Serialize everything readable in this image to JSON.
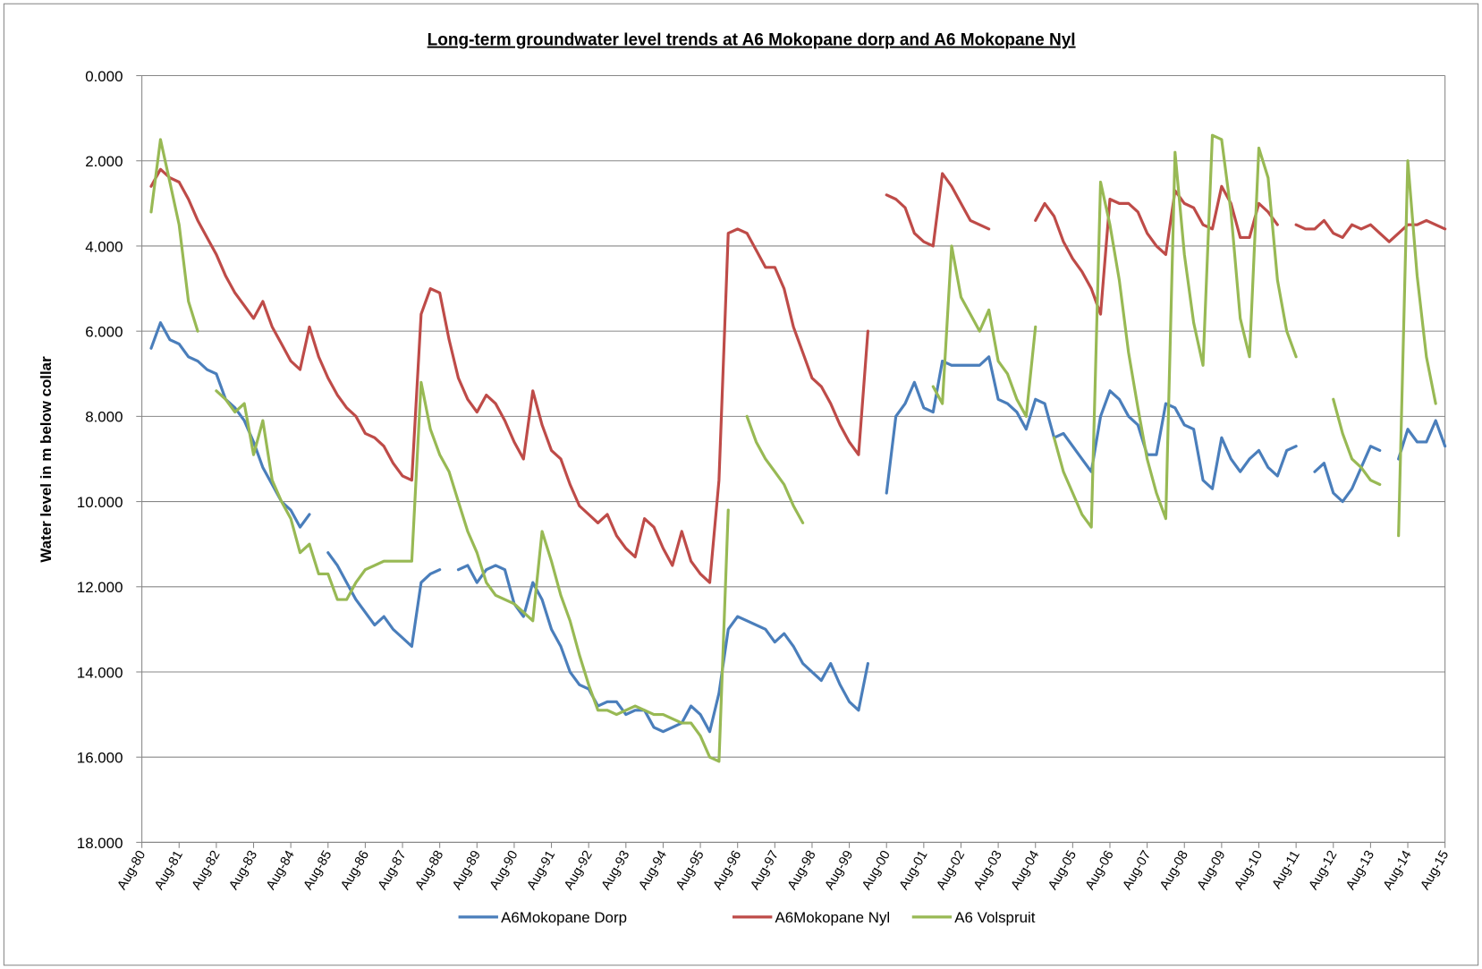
{
  "chart_data": {
    "type": "line",
    "title": "Long-term groundwater level trends at A6 Mokopane dorp and A6 Mokopane Nyl",
    "y_label": "Water level in m below collar",
    "y_reversed": true,
    "grid": true,
    "legend": "bottom",
    "ylim": [
      0,
      18
    ],
    "yticks": [
      {
        "value": 0,
        "label": "0.000"
      },
      {
        "value": 2,
        "label": "2.000"
      },
      {
        "value": 4,
        "label": "4.000"
      },
      {
        "value": 6,
        "label": "6.000"
      },
      {
        "value": 8,
        "label": "8.000"
      },
      {
        "value": 10,
        "label": "10.000"
      },
      {
        "value": 12,
        "label": "12.000"
      },
      {
        "value": 14,
        "label": "14.000"
      },
      {
        "value": 16,
        "label": "16.000"
      },
      {
        "value": 18,
        "label": "18.000"
      }
    ],
    "categories": [
      "Aug-80",
      null,
      null,
      null,
      "Aug-81",
      null,
      null,
      null,
      "Aug-82",
      null,
      null,
      null,
      "Aug-83",
      null,
      null,
      null,
      "Aug-84",
      null,
      null,
      null,
      "Aug-85",
      null,
      null,
      null,
      "Aug-86",
      null,
      null,
      null,
      "Aug-87",
      null,
      null,
      null,
      "Aug-88",
      null,
      null,
      null,
      "Aug-89",
      null,
      null,
      null,
      "Aug-90",
      null,
      null,
      null,
      "Aug-91",
      null,
      null,
      null,
      "Aug-92",
      null,
      null,
      null,
      "Aug-93",
      null,
      null,
      null,
      "Aug-94",
      null,
      null,
      null,
      "Aug-95",
      null,
      null,
      null,
      "Aug-96",
      null,
      null,
      null,
      "Aug-97",
      null,
      null,
      null,
      "Aug-98",
      null,
      null,
      null,
      "Aug-99",
      null,
      null,
      null,
      "Aug-00",
      null,
      null,
      null,
      "Aug-01",
      null,
      null,
      null,
      "Aug-02",
      null,
      null,
      null,
      "Aug-03",
      null,
      null,
      null,
      "Aug-04",
      null,
      null,
      null,
      "Aug-05",
      null,
      null,
      null,
      "Aug-06",
      null,
      null,
      null,
      "Aug-07",
      null,
      null,
      null,
      "Aug-08",
      null,
      null,
      null,
      "Aug-09",
      null,
      null,
      null,
      "Aug-10",
      null,
      null,
      null,
      "Aug-11",
      null,
      null,
      null,
      "Aug-12",
      null,
      null,
      null,
      "Aug-13",
      null,
      null,
      null,
      "Aug-14",
      null,
      null,
      null,
      "Aug-15"
    ],
    "series": [
      {
        "name": "A6Mokopane Dorp",
        "color": "#4a7ebb",
        "values": [
          null,
          6.4,
          5.8,
          6.2,
          6.3,
          6.6,
          6.7,
          6.9,
          7.0,
          7.6,
          7.8,
          8.1,
          8.6,
          9.2,
          9.6,
          10.0,
          10.2,
          10.6,
          10.3,
          null,
          11.2,
          11.5,
          11.9,
          12.3,
          12.6,
          12.9,
          12.7,
          13.0,
          13.2,
          13.4,
          11.9,
          11.7,
          11.6,
          null,
          11.6,
          11.5,
          11.9,
          11.6,
          11.5,
          11.6,
          12.4,
          12.7,
          11.9,
          12.3,
          13.0,
          13.4,
          14.0,
          14.3,
          14.4,
          14.8,
          14.7,
          14.7,
          15.0,
          14.9,
          14.9,
          15.3,
          15.4,
          15.3,
          15.2,
          14.8,
          15.0,
          15.4,
          14.5,
          13.0,
          12.7,
          12.8,
          12.9,
          13.0,
          13.3,
          13.1,
          13.4,
          13.8,
          14.0,
          14.2,
          13.8,
          14.3,
          14.7,
          14.9,
          13.8,
          null,
          9.8,
          8.0,
          7.7,
          7.2,
          7.8,
          7.9,
          6.7,
          6.8,
          6.8,
          6.8,
          6.8,
          6.6,
          7.6,
          7.7,
          7.9,
          8.3,
          7.6,
          7.7,
          8.5,
          8.4,
          8.7,
          9.0,
          9.3,
          8.0,
          7.4,
          7.6,
          8.0,
          8.2,
          8.9,
          8.9,
          7.7,
          7.8,
          8.2,
          8.3,
          9.5,
          9.7,
          8.5,
          9.0,
          9.3,
          9.0,
          8.8,
          9.2,
          9.4,
          8.8,
          8.7,
          null,
          9.3,
          9.1,
          9.8,
          10.0,
          9.7,
          9.2,
          8.7,
          8.8,
          null,
          9.0,
          8.3,
          8.6,
          8.6,
          8.1,
          8.7
        ]
      },
      {
        "name": "A6Mokopane Nyl",
        "color": "#be4b48",
        "values": [
          null,
          2.6,
          2.2,
          2.4,
          2.5,
          2.9,
          3.4,
          3.8,
          4.2,
          4.7,
          5.1,
          5.4,
          5.7,
          5.3,
          5.9,
          6.3,
          6.7,
          6.9,
          5.9,
          6.6,
          7.1,
          7.5,
          7.8,
          8.0,
          8.4,
          8.5,
          8.7,
          9.1,
          9.4,
          9.5,
          5.6,
          5.0,
          5.1,
          6.2,
          7.1,
          7.6,
          7.9,
          7.5,
          7.7,
          8.1,
          8.6,
          9.0,
          7.4,
          8.2,
          8.8,
          9.0,
          9.6,
          10.1,
          10.3,
          10.5,
          10.3,
          10.8,
          11.1,
          11.3,
          10.4,
          10.6,
          11.1,
          11.5,
          10.7,
          11.4,
          11.7,
          11.9,
          9.5,
          3.7,
          3.6,
          3.7,
          4.1,
          4.5,
          4.5,
          5.0,
          5.9,
          6.5,
          7.1,
          7.3,
          7.7,
          8.2,
          8.6,
          8.9,
          6.0,
          null,
          2.8,
          2.9,
          3.1,
          3.7,
          3.9,
          4.0,
          2.3,
          2.6,
          3.0,
          3.4,
          3.5,
          3.6,
          null,
          null,
          null,
          null,
          3.4,
          3.0,
          3.3,
          3.9,
          4.3,
          4.6,
          5.0,
          5.6,
          2.9,
          3.0,
          3.0,
          3.2,
          3.7,
          4.0,
          4.2,
          2.7,
          3.0,
          3.1,
          3.5,
          3.6,
          2.6,
          3.0,
          3.8,
          3.8,
          3.0,
          3.2,
          3.5,
          null,
          3.5,
          3.6,
          3.6,
          3.4,
          3.7,
          3.8,
          3.5,
          3.6,
          3.5,
          3.7,
          3.9,
          3.7,
          3.5,
          3.5,
          3.4,
          3.5,
          3.6
        ]
      },
      {
        "name": "A6 Volspruit",
        "color": "#98b954",
        "values": [
          null,
          3.2,
          1.5,
          2.5,
          3.5,
          5.3,
          6.0,
          null,
          7.4,
          7.6,
          7.9,
          7.7,
          8.9,
          8.1,
          9.5,
          10.0,
          10.4,
          11.2,
          11.0,
          11.7,
          11.7,
          12.3,
          12.3,
          11.9,
          11.6,
          11.5,
          11.4,
          11.4,
          11.4,
          11.4,
          7.2,
          8.3,
          8.9,
          9.3,
          10.0,
          10.7,
          11.2,
          11.9,
          12.2,
          12.3,
          12.4,
          12.6,
          12.8,
          10.7,
          11.4,
          12.2,
          12.8,
          13.6,
          14.3,
          14.9,
          14.9,
          15.0,
          14.9,
          14.8,
          14.9,
          15.0,
          15.0,
          15.1,
          15.2,
          15.2,
          15.5,
          16.0,
          16.1,
          10.2,
          null,
          8.0,
          8.6,
          9.0,
          9.3,
          9.6,
          10.1,
          10.5,
          null,
          null,
          null,
          null,
          null,
          null,
          null,
          null,
          null,
          null,
          null,
          null,
          null,
          7.3,
          7.7,
          4.0,
          5.2,
          5.6,
          6.0,
          5.5,
          6.7,
          7.0,
          7.6,
          8.0,
          5.9,
          null,
          8.5,
          9.3,
          9.8,
          10.3,
          10.6,
          2.5,
          3.5,
          4.8,
          6.5,
          7.8,
          9.0,
          9.8,
          10.4,
          1.8,
          4.2,
          5.8,
          6.8,
          1.4,
          1.5,
          3.2,
          5.7,
          6.6,
          1.7,
          2.4,
          4.8,
          6.0,
          6.6,
          null,
          null,
          null,
          7.6,
          8.4,
          9.0,
          9.2,
          9.5,
          9.6,
          null,
          10.8,
          2.0,
          4.7,
          6.6,
          7.7,
          null
        ]
      }
    ]
  }
}
